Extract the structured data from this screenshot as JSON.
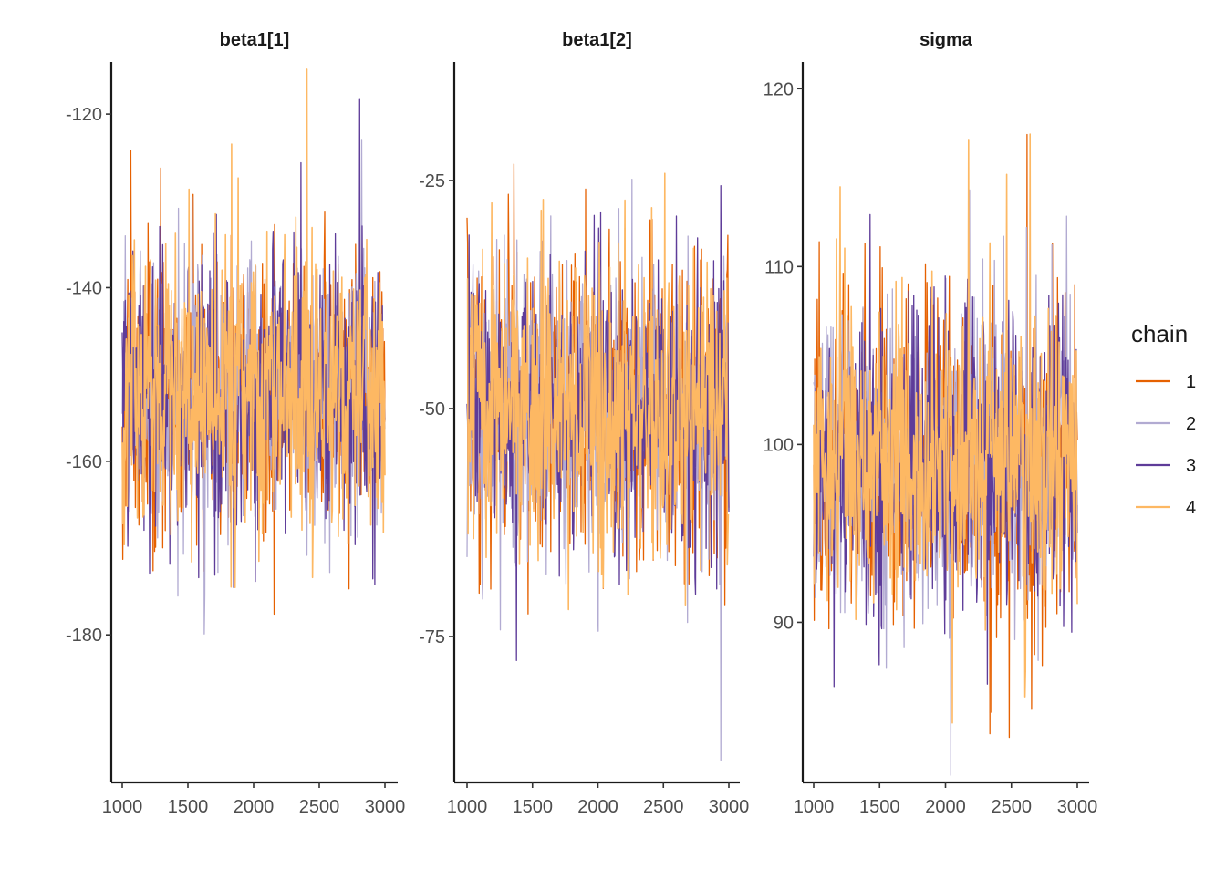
{
  "chart_data": [
    {
      "type": "line",
      "title": "beta1[1]",
      "xlim": [
        1000,
        3000
      ],
      "ylim": [
        -197,
        -114
      ],
      "x_ticks": [
        1000,
        1500,
        2000,
        2500,
        3000
      ],
      "y_ticks": [
        -120,
        -140,
        -160,
        -180
      ],
      "center": -152,
      "spread": 8,
      "x_labels": [
        "1000",
        "1500",
        "2000",
        "2500",
        "3000"
      ],
      "y_labels": [
        "-120",
        "-140",
        "-160",
        "-180"
      ]
    },
    {
      "type": "line",
      "title": "beta1[2]",
      "xlim": [
        1000,
        3000
      ],
      "ylim": [
        -91,
        -12
      ],
      "x_ticks": [
        1000,
        1500,
        2000,
        2500,
        3000
      ],
      "y_ticks": [
        -25,
        -50,
        -75
      ],
      "center": -50,
      "spread": 8,
      "x_labels": [
        "1000",
        "1500",
        "2000",
        "2500",
        "3000"
      ],
      "y_labels": [
        "-25",
        "-50",
        "-75"
      ]
    },
    {
      "type": "line",
      "title": "sigma",
      "xlim": [
        1000,
        3000
      ],
      "ylim": [
        81,
        121.5
      ],
      "x_ticks": [
        1000,
        1500,
        2000,
        2500,
        3000
      ],
      "y_ticks": [
        120,
        110,
        100,
        90
      ],
      "center": 99,
      "spread": 4.3,
      "x_labels": [
        "1000",
        "1500",
        "2000",
        "2500",
        "3000"
      ],
      "y_labels": [
        "120",
        "110",
        "100",
        "90"
      ]
    }
  ],
  "legend": {
    "title": "chain",
    "placement": "right",
    "items": [
      {
        "label": "1",
        "color": "#e66101"
      },
      {
        "label": "2",
        "color": "#b2abd2"
      },
      {
        "label": "3",
        "color": "#5e3c99"
      },
      {
        "label": "4",
        "color": "#fdb863"
      }
    ]
  },
  "draw_order": [
    0,
    1,
    2,
    3
  ]
}
